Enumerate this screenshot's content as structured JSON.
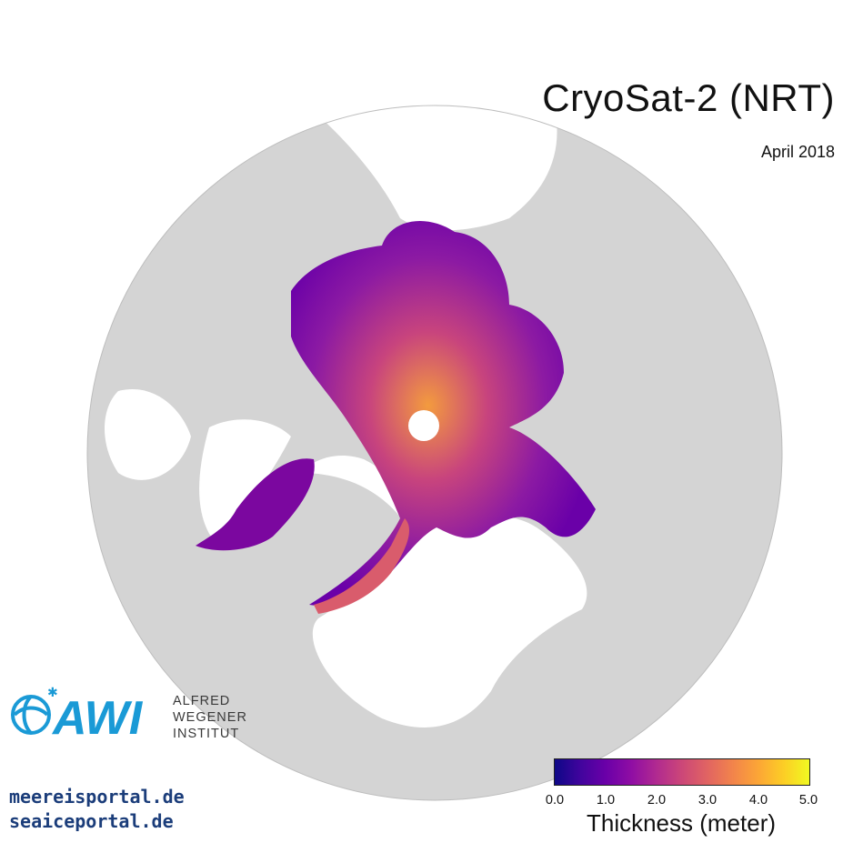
{
  "title": "CryoSat-2 (NRT)",
  "period": "April 2018",
  "institute_lines": [
    "ALFRED",
    "WEGENER",
    "INSTITUT"
  ],
  "logo_word": "AWI",
  "portals": [
    "meereisportal.de",
    "seaiceportal.de"
  ],
  "colorbar": {
    "label": "Thickness (meter)",
    "ticks": [
      "0.0",
      "1.0",
      "2.0",
      "3.0",
      "4.0",
      "5.0"
    ],
    "range": [
      0,
      5
    ],
    "colormap": "plasma"
  },
  "colors": {
    "land": "#d4d4d4",
    "background": "#ffffff",
    "logo_blue": "#1a9ad6",
    "portal_text": "#1b3d7a"
  }
}
